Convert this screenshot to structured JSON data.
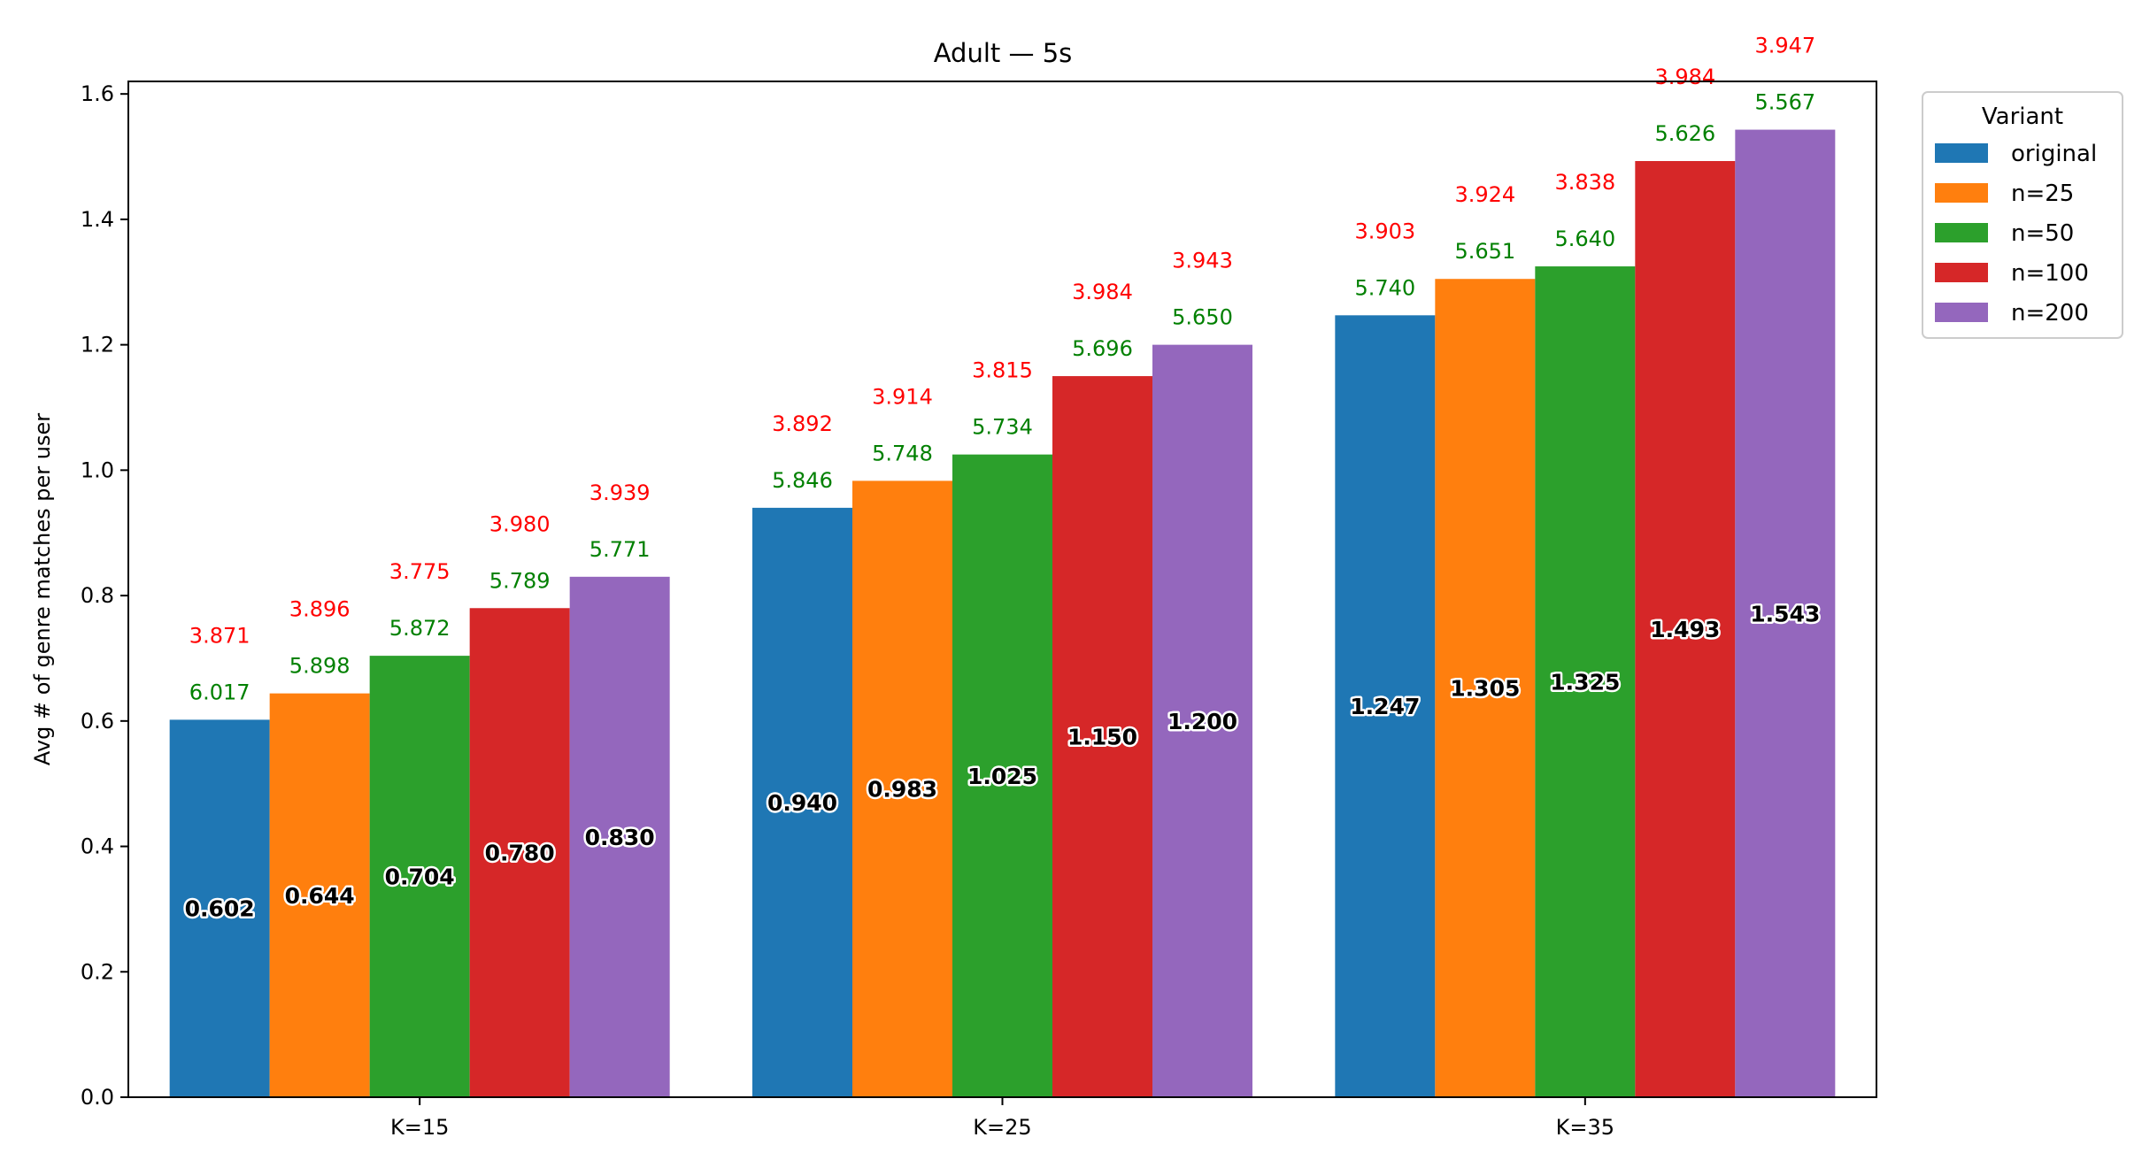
{
  "chart_data": {
    "type": "bar",
    "title": "Adult — 5s",
    "xlabel": "",
    "ylabel": "Avg # of genre matches per user",
    "ylim": [
      0,
      1.62
    ],
    "yticks": [
      "0.0",
      "0.2",
      "0.4",
      "0.6",
      "0.8",
      "1.0",
      "1.2",
      "1.4",
      "1.6"
    ],
    "categories": [
      "K=15",
      "K=25",
      "K=35"
    ],
    "legend": {
      "title": "Variant",
      "placement": "upper-right-outside"
    },
    "grid": false,
    "series": [
      {
        "name": "original",
        "color": "#1f77b4",
        "values": [
          0.602,
          0.94,
          1.247
        ],
        "labels": [
          "0.602",
          "0.940",
          "1.247"
        ],
        "green_labels": [
          "6.017",
          "5.846",
          "5.740"
        ],
        "red_labels": [
          "3.871",
          "3.892",
          "3.903"
        ]
      },
      {
        "name": "n=25",
        "color": "#ff7f0e",
        "values": [
          0.644,
          0.983,
          1.305
        ],
        "labels": [
          "0.644",
          "0.983",
          "1.305"
        ],
        "green_labels": [
          "5.898",
          "5.748",
          "5.651"
        ],
        "red_labels": [
          "3.896",
          "3.914",
          "3.924"
        ]
      },
      {
        "name": "n=50",
        "color": "#2ca02c",
        "values": [
          0.704,
          1.025,
          1.325
        ],
        "labels": [
          "0.704",
          "1.025",
          "1.325"
        ],
        "green_labels": [
          "5.872",
          "5.734",
          "5.640"
        ],
        "red_labels": [
          "3.775",
          "3.815",
          "3.838"
        ]
      },
      {
        "name": "n=100",
        "color": "#d62728",
        "values": [
          0.78,
          1.15,
          1.493
        ],
        "labels": [
          "0.780",
          "1.150",
          "1.493"
        ],
        "green_labels": [
          "5.789",
          "5.696",
          "5.626"
        ],
        "red_labels": [
          "3.980",
          "3.984",
          "3.984"
        ]
      },
      {
        "name": "n=200",
        "color": "#9467bd",
        "values": [
          0.83,
          1.2,
          1.543
        ],
        "labels": [
          "0.830",
          "1.200",
          "1.543"
        ],
        "green_labels": [
          "5.771",
          "5.650",
          "5.567"
        ],
        "red_labels": [
          "3.939",
          "3.943",
          "3.947"
        ]
      }
    ]
  }
}
